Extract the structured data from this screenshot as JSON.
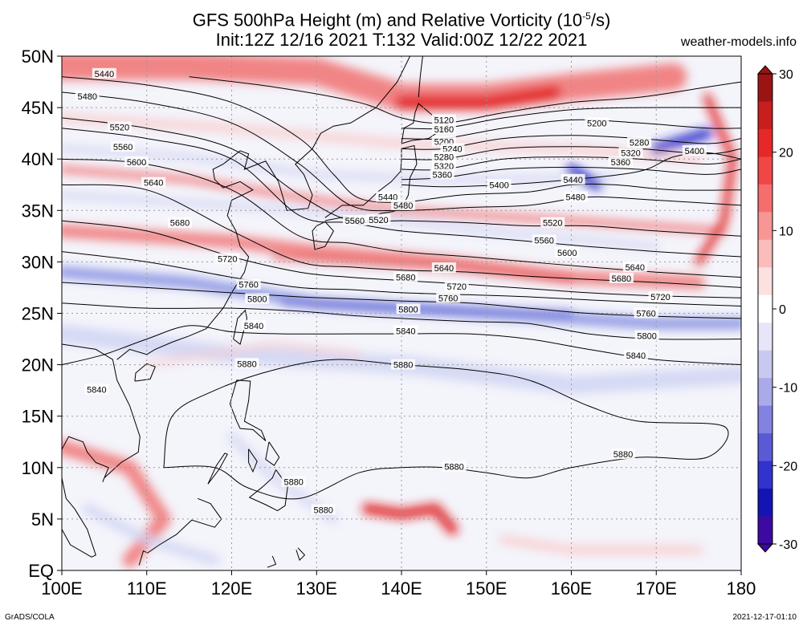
{
  "header": {
    "title_line1_pre": "GFS 500hPa Height (m) and Relative Vorticity (10",
    "title_line1_exp": "-5",
    "title_line1_post": "/s)",
    "title_line2": "Init:12Z 12/16 2021 T:132 Valid:00Z 12/22 2021",
    "site": "weather-models.info"
  },
  "footer": {
    "credit": "GrADS/COLA",
    "stamp": "2021-12-17-01:10"
  },
  "map": {
    "lat_labels": [
      "50N",
      "45N",
      "40N",
      "35N",
      "30N",
      "25N",
      "20N",
      "15N",
      "10N",
      "5N",
      "EQ"
    ],
    "lat_values": [
      50,
      45,
      40,
      35,
      30,
      25,
      20,
      15,
      10,
      5,
      0
    ],
    "lon_labels": [
      "100E",
      "110E",
      "120E",
      "130E",
      "140E",
      "150E",
      "160E",
      "170E",
      "180"
    ],
    "lon_values": [
      100,
      110,
      120,
      130,
      140,
      150,
      160,
      170,
      180
    ],
    "lon_range": [
      100,
      180
    ],
    "lat_range": [
      0,
      50
    ],
    "contour_interval_m": 40,
    "contours": [
      {
        "level": "5120",
        "pts": [
          [
            115,
            48
          ],
          [
            125,
            47
          ],
          [
            135,
            45.5
          ],
          [
            140,
            44
          ],
          [
            145,
            43.5
          ],
          [
            152,
            44.5
          ],
          [
            160,
            45.5
          ],
          [
            168,
            46
          ],
          [
            176,
            47
          ],
          [
            180,
            47.5
          ]
        ],
        "labels": [
          [
            145,
            43.8
          ]
        ]
      },
      {
        "level": "5160",
        "pts": [
          [
            140,
            43
          ],
          [
            145,
            43
          ],
          [
            152,
            44
          ],
          [
            160,
            44.8
          ],
          [
            168,
            45
          ],
          [
            176,
            45
          ],
          [
            180,
            45
          ]
        ],
        "labels": [
          [
            145,
            42.9
          ]
        ]
      },
      {
        "level": "5200",
        "pts": [
          [
            140,
            42
          ],
          [
            145,
            42
          ],
          [
            152,
            43
          ],
          [
            160,
            43.8
          ],
          [
            168,
            43.5
          ],
          [
            176,
            43
          ],
          [
            180,
            43
          ]
        ],
        "labels": [
          [
            145,
            41.7
          ],
          [
            163,
            43.5
          ]
        ]
      },
      {
        "level": "5240",
        "pts": [
          [
            140,
            41
          ],
          [
            145,
            41
          ],
          [
            152,
            42
          ],
          [
            160,
            42.3
          ],
          [
            168,
            42
          ],
          [
            176,
            41.5
          ],
          [
            180,
            42
          ]
        ],
        "labels": [
          [
            146,
            41
          ]
        ]
      },
      {
        "level": "5280",
        "pts": [
          [
            140,
            40
          ],
          [
            145,
            40
          ],
          [
            152,
            41
          ],
          [
            160,
            41.2
          ],
          [
            168,
            41
          ],
          [
            176,
            40.5
          ],
          [
            180,
            41
          ]
        ],
        "labels": [
          [
            145,
            40.2
          ],
          [
            168,
            41.6
          ]
        ]
      },
      {
        "level": "5320",
        "pts": [
          [
            140,
            39
          ],
          [
            145,
            39
          ],
          [
            152,
            40
          ],
          [
            160,
            40.2
          ],
          [
            168,
            40
          ],
          [
            176,
            39.5
          ],
          [
            180,
            40
          ]
        ],
        "labels": [
          [
            145,
            39.3
          ],
          [
            167,
            40.6
          ]
        ]
      },
      {
        "level": "5360",
        "pts": [
          [
            140,
            38
          ],
          [
            145,
            38.2
          ],
          [
            152,
            39
          ],
          [
            160,
            39.2
          ],
          [
            168,
            39
          ],
          [
            176,
            38.5
          ],
          [
            180,
            39
          ]
        ],
        "labels": [
          [
            144.8,
            38.5
          ],
          [
            165.8,
            39.7
          ]
        ]
      },
      {
        "level": "5400",
        "pts": [
          [
            140,
            37.5
          ],
          [
            145,
            37.3
          ],
          [
            152,
            37.5
          ],
          [
            160,
            38
          ],
          [
            168,
            38.8
          ],
          [
            172,
            40.2
          ],
          [
            176,
            40.6
          ],
          [
            180,
            40
          ]
        ],
        "labels": [
          [
            151.5,
            37.5
          ],
          [
            174.5,
            40.8
          ]
        ]
      },
      {
        "level": "5440",
        "pts": [
          [
            100,
            48
          ],
          [
            110,
            47.2
          ],
          [
            120,
            45.5
          ],
          [
            128,
            42
          ],
          [
            132,
            38.5
          ],
          [
            135,
            36.2
          ],
          [
            140,
            35.8
          ],
          [
            147,
            36.5
          ],
          [
            155,
            36.8
          ],
          [
            160,
            37.5
          ],
          [
            165,
            37.5
          ],
          [
            172,
            37
          ],
          [
            180,
            37
          ]
        ],
        "labels": [
          [
            105,
            48.3
          ],
          [
            138.4,
            36.3
          ],
          [
            160.2,
            38
          ]
        ]
      },
      {
        "level": "5480",
        "pts": [
          [
            100,
            46.5
          ],
          [
            110,
            45.5
          ],
          [
            120,
            43.5
          ],
          [
            128,
            39.5
          ],
          [
            134,
            35.5
          ],
          [
            140,
            35
          ],
          [
            148,
            35.3
          ],
          [
            155,
            35.5
          ],
          [
            162,
            36.3
          ],
          [
            170,
            36
          ],
          [
            180,
            35.5
          ]
        ],
        "labels": [
          [
            103,
            46.1
          ],
          [
            140.2,
            35.5
          ],
          [
            160.5,
            36.3
          ]
        ]
      },
      {
        "level": "5520",
        "pts": [
          [
            100,
            44
          ],
          [
            110,
            43
          ],
          [
            120,
            41
          ],
          [
            128,
            36.5
          ],
          [
            134,
            34
          ],
          [
            140,
            34
          ],
          [
            148,
            33.8
          ],
          [
            155,
            33.5
          ],
          [
            162,
            33.5
          ],
          [
            170,
            33
          ],
          [
            180,
            32.5
          ]
        ],
        "labels": [
          [
            106.8,
            43.1
          ],
          [
            137.3,
            34.1
          ],
          [
            157.8,
            33.8
          ]
        ]
      },
      {
        "level": "5560",
        "pts": [
          [
            100,
            43
          ],
          [
            110,
            42
          ],
          [
            120,
            40
          ],
          [
            128,
            34.5
          ],
          [
            134,
            33.8
          ],
          [
            140,
            33
          ],
          [
            148,
            32.5
          ],
          [
            155,
            32
          ],
          [
            162,
            31.5
          ],
          [
            170,
            31
          ],
          [
            180,
            30.5
          ]
        ],
        "labels": [
          [
            107.2,
            41.2
          ],
          [
            134.5,
            34
          ],
          [
            156.8,
            32.1
          ]
        ]
      },
      {
        "level": "5600",
        "pts": [
          [
            100,
            40
          ],
          [
            110,
            39.5
          ],
          [
            120,
            37
          ],
          [
            128,
            32.5
          ],
          [
            134,
            31.8
          ],
          [
            140,
            31
          ],
          [
            148,
            30.5
          ],
          [
            155,
            30
          ],
          [
            162,
            29.5
          ],
          [
            170,
            29
          ],
          [
            180,
            28.5
          ]
        ],
        "labels": [
          [
            108.8,
            39.7
          ],
          [
            159.5,
            30.9
          ]
        ]
      },
      {
        "level": "5640",
        "pts": [
          [
            100,
            37.5
          ],
          [
            110,
            37
          ],
          [
            120,
            33
          ],
          [
            128,
            30
          ],
          [
            134,
            29.5
          ],
          [
            140,
            29.2
          ],
          [
            148,
            29
          ],
          [
            155,
            28.6
          ],
          [
            162,
            28.3
          ],
          [
            170,
            28
          ],
          [
            180,
            27.5
          ]
        ],
        "labels": [
          [
            110.8,
            37.7
          ],
          [
            145,
            29.4
          ],
          [
            167.5,
            29.5
          ]
        ]
      },
      {
        "level": "5680",
        "pts": [
          [
            100,
            34
          ],
          [
            110,
            33
          ],
          [
            120,
            30.5
          ],
          [
            128,
            29
          ],
          [
            134,
            28.5
          ],
          [
            140,
            28.2
          ],
          [
            148,
            27.8
          ],
          [
            155,
            27.4
          ],
          [
            162,
            27
          ],
          [
            170,
            26.7
          ],
          [
            180,
            26.5
          ]
        ],
        "labels": [
          [
            113.9,
            33.8
          ],
          [
            140.5,
            28.5
          ],
          [
            165.9,
            28.4
          ]
        ]
      },
      {
        "level": "5720",
        "pts": [
          [
            100,
            31
          ],
          [
            110,
            30
          ],
          [
            120,
            28.5
          ],
          [
            128,
            27.5
          ],
          [
            134,
            27.3
          ],
          [
            140,
            27
          ],
          [
            148,
            26.8
          ],
          [
            155,
            26.6
          ],
          [
            162,
            26.3
          ],
          [
            170,
            26
          ],
          [
            180,
            25.7
          ]
        ],
        "labels": [
          [
            119.5,
            30.3
          ],
          [
            146.5,
            27.6
          ],
          [
            170.5,
            26.6
          ]
        ]
      },
      {
        "level": "5760",
        "pts": [
          [
            100,
            28
          ],
          [
            110,
            27.5
          ],
          [
            120,
            27
          ],
          [
            128,
            26.6
          ],
          [
            134,
            26.4
          ],
          [
            140,
            26.2
          ],
          [
            148,
            26
          ],
          [
            155,
            25.5
          ],
          [
            162,
            25
          ],
          [
            170,
            24.7
          ],
          [
            180,
            24.5
          ]
        ],
        "labels": [
          [
            122,
            27.8
          ],
          [
            145.5,
            26.5
          ],
          [
            168.8,
            25
          ]
        ]
      },
      {
        "level": "5800",
        "pts": [
          [
            100,
            26
          ],
          [
            110,
            25.5
          ],
          [
            120,
            25.5
          ],
          [
            128,
            25.2
          ],
          [
            134,
            24.8
          ],
          [
            140,
            24.5
          ],
          [
            148,
            24.2
          ],
          [
            155,
            24
          ],
          [
            162,
            23
          ],
          [
            170,
            22.5
          ],
          [
            180,
            22.5
          ]
        ],
        "labels": [
          [
            123,
            26.4
          ],
          [
            140.8,
            25.4
          ],
          [
            168.9,
            22.8
          ]
        ]
      },
      {
        "level": "5840",
        "pts": [
          [
            100,
            20
          ],
          [
            105,
            21
          ],
          [
            110,
            22.5
          ],
          [
            115,
            23.8
          ],
          [
            120,
            23.2
          ],
          [
            126,
            23
          ],
          [
            134,
            23
          ],
          [
            140,
            23
          ],
          [
            148,
            23
          ],
          [
            155,
            22.5
          ],
          [
            162,
            21.5
          ],
          [
            170,
            20.5
          ],
          [
            180,
            20
          ]
        ],
        "labels": [
          [
            122.6,
            23.8
          ],
          [
            140.5,
            23.3
          ],
          [
            167.6,
            20.9
          ],
          [
            104.1,
            17.6
          ]
        ]
      },
      {
        "level": "5880",
        "pts": [
          [
            112,
            10
          ],
          [
            113,
            15
          ],
          [
            118,
            17.5
          ],
          [
            125,
            19.5
          ],
          [
            132,
            20.5
          ],
          [
            140,
            20
          ],
          [
            148,
            19.5
          ],
          [
            155,
            18.5
          ],
          [
            162,
            16
          ],
          [
            168,
            14.5
          ],
          [
            178,
            14
          ],
          [
            176,
            11
          ],
          [
            168,
            11
          ],
          [
            160,
            10
          ],
          [
            155,
            9
          ],
          [
            150,
            9.5
          ],
          [
            145,
            10
          ],
          [
            140,
            10
          ],
          [
            135,
            9.5
          ],
          [
            128,
            7
          ],
          [
            122,
            8
          ],
          [
            118,
            10
          ],
          [
            112,
            10
          ]
        ],
        "labels": [
          [
            121.8,
            20.1
          ],
          [
            140.2,
            20
          ],
          [
            166.1,
            11.3
          ],
          [
            146.2,
            10.1
          ],
          [
            127.3,
            8.6
          ],
          [
            130.8,
            5.9
          ]
        ]
      }
    ],
    "colorbar": {
      "ticks": [
        "30",
        "20",
        "10",
        "0",
        "-10",
        "-20",
        "-30"
      ],
      "tick_values": [
        30,
        20,
        10,
        0,
        -10,
        -20,
        -30
      ],
      "colors": [
        "#9a1414",
        "#c81e1e",
        "#e62828",
        "#f04646",
        "#f56e6e",
        "#f89696",
        "#fbbcbc",
        "#fde0e0",
        "#ffffff",
        "#e6e6f8",
        "#c8c8f0",
        "#aaaaea",
        "#8282e1",
        "#5a5ad7",
        "#3232cd",
        "#1414b4",
        "#3c0aa0"
      ]
    },
    "vorticity_colors": {
      "strong_pos": "#e01818",
      "pos": "#f07070",
      "weak_pos": "#f8c8c8",
      "neutral": "#f4f4fb",
      "weak_neg": "#cfd3f2",
      "neg": "#7f8ae0",
      "strong_neg": "#2525c8"
    }
  }
}
